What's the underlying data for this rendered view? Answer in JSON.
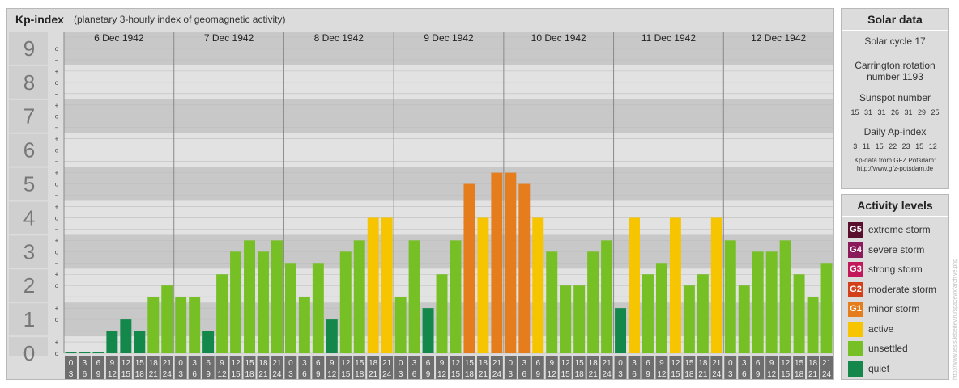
{
  "header": {
    "title": "Kp-index",
    "subtitle": "(planetary 3-hourly index of geomagnetic activity)"
  },
  "chart_data": {
    "type": "bar",
    "title": "Kp-index",
    "subtitle": "(planetary 3-hourly index of geomagnetic activity)",
    "ylim": [
      0,
      9
    ],
    "y_ticks": [
      "0",
      "1",
      "2",
      "3",
      "4",
      "5",
      "6",
      "7",
      "8",
      "9"
    ],
    "sub_ticks": [
      "+",
      "o",
      "−"
    ],
    "days": [
      "6 Dec 1942",
      "7 Dec 1942",
      "8 Dec 1942",
      "9 Dec 1942",
      "10 Dec 1942",
      "11 Dec 1942",
      "12 Dec 1942"
    ],
    "hour_labels": [
      [
        "0",
        "3"
      ],
      [
        "3",
        "6"
      ],
      [
        "6",
        "9"
      ],
      [
        "9",
        "12"
      ],
      [
        "12",
        "15"
      ],
      [
        "15",
        "18"
      ],
      [
        "18",
        "21"
      ],
      [
        "21",
        "24"
      ]
    ],
    "values": [
      0,
      0,
      0,
      0.667,
      1,
      0.667,
      1.667,
      2,
      1.667,
      1.667,
      0.667,
      2.333,
      3,
      3.333,
      3,
      3.333,
      2.667,
      1.667,
      2.667,
      1,
      3,
      3.333,
      4,
      4,
      1.667,
      3.333,
      1.333,
      2.333,
      3.333,
      5,
      4,
      5.333,
      5.333,
      5,
      4,
      3,
      2,
      2,
      3,
      3.333,
      1.333,
      4,
      2.333,
      2.667,
      4,
      2,
      2.333,
      4,
      3.333,
      2,
      3,
      3,
      3.333,
      2.333,
      1.667,
      2.667
    ],
    "colors": {
      "quiet": "#13884a",
      "unsettled": "#76c025",
      "active": "#f7c400",
      "minor": "#e57d1c",
      "moderate": "#d23f19",
      "strong": "#c2185b",
      "severe": "#8b1a5a",
      "extreme": "#5a0e2e"
    }
  },
  "solar": {
    "header": "Solar data",
    "cycle": "Solar cycle 17",
    "carrington_1": "Carrington rotation",
    "carrington_2": "number 1193",
    "sunspot_title": "Sunspot number",
    "sunspot_values": "15 31 31 26 31 29 25",
    "ap_title": "Daily Ap-index",
    "ap_values": "3 11 15 22 23 15 12",
    "credit_1": "Kp-data from GFZ Potsdam:",
    "credit_2": "http://www.gfz-potsdam.de"
  },
  "activity": {
    "header": "Activity levels",
    "levels": [
      {
        "badge": "G5",
        "label": "extreme storm",
        "color": "#5a0e2e"
      },
      {
        "badge": "G4",
        "label": "severe storm",
        "color": "#8b1a5a"
      },
      {
        "badge": "G3",
        "label": "strong storm",
        "color": "#c2185b"
      },
      {
        "badge": "G2",
        "label": "moderate storm",
        "color": "#d23f19"
      },
      {
        "badge": "G1",
        "label": "minor storm",
        "color": "#e57d1c"
      },
      {
        "badge": "",
        "label": "active",
        "color": "#f7c400"
      },
      {
        "badge": "",
        "label": "unsettled",
        "color": "#76c025"
      },
      {
        "badge": "",
        "label": "quiet",
        "color": "#13884a"
      }
    ]
  },
  "footer": {
    "vertical_credit": "http://www.tesis.lebedev.ru/spacewx/archive.php"
  }
}
